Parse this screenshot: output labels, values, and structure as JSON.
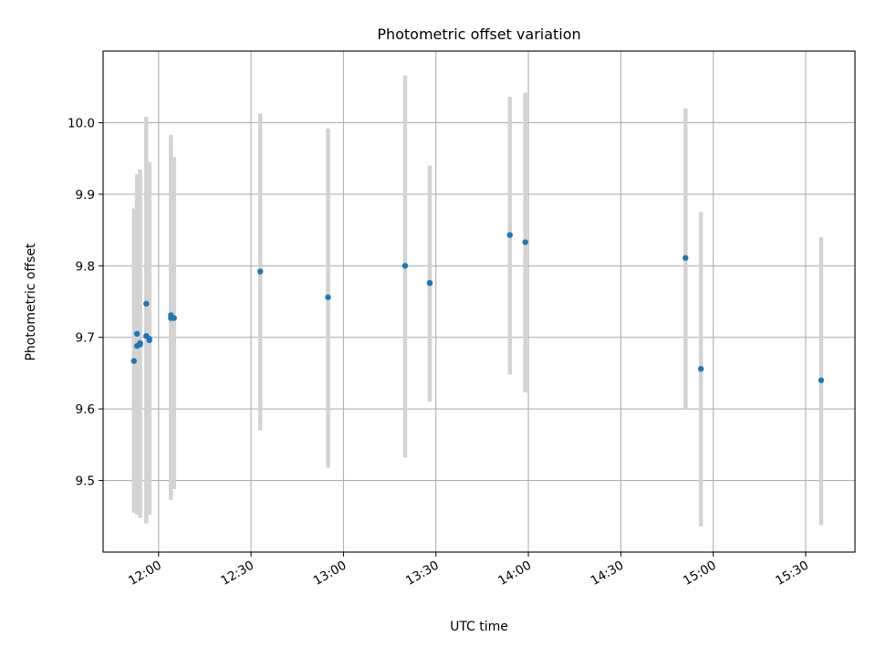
{
  "chart_data": {
    "type": "scatter",
    "title": "Photometric offset variation",
    "xlabel": "UTC time",
    "ylabel": "Photometric offset",
    "x_is_time": true,
    "xlim": [
      "11:42",
      "15:46"
    ],
    "ylim": [
      9.4,
      10.1
    ],
    "x_ticks": [
      "12:00",
      "12:30",
      "13:00",
      "13:30",
      "14:00",
      "14:30",
      "15:00",
      "15:30"
    ],
    "y_ticks": [
      9.5,
      9.6,
      9.7,
      9.8,
      9.9,
      10.0
    ],
    "y_tick_labels": [
      "9.5",
      "9.6",
      "9.7",
      "9.8",
      "9.9",
      "10.0"
    ],
    "grid": true,
    "colors": {
      "point": "#1f77b4",
      "error_bar": "#d3d3d3",
      "grid": "#b0b0b0"
    },
    "points": [
      {
        "time": "11:52",
        "y": 9.667,
        "err_low": 9.455,
        "err_high": 9.88
      },
      {
        "time": "11:53",
        "y": 9.688,
        "err_low": 9.452,
        "err_high": 9.928
      },
      {
        "time": "11:53",
        "y": 9.705,
        "err_low": 9.46,
        "err_high": 9.905
      },
      {
        "time": "11:54",
        "y": 9.692,
        "err_low": 9.448,
        "err_high": 9.935
      },
      {
        "time": "11:54",
        "y": 9.69,
        "err_low": 9.455,
        "err_high": 9.93
      },
      {
        "time": "11:56",
        "y": 9.747,
        "err_low": 9.44,
        "err_high": 10.008
      },
      {
        "time": "11:56",
        "y": 9.702,
        "err_low": 9.445,
        "err_high": 9.96
      },
      {
        "time": "11:57",
        "y": 9.696,
        "err_low": 9.452,
        "err_high": 9.94
      },
      {
        "time": "11:57",
        "y": 9.698,
        "err_low": 9.455,
        "err_high": 9.945
      },
      {
        "time": "12:04",
        "y": 9.731,
        "err_low": 9.473,
        "err_high": 9.983
      },
      {
        "time": "12:04",
        "y": 9.727,
        "err_low": 9.48,
        "err_high": 9.975
      },
      {
        "time": "12:05",
        "y": 9.727,
        "err_low": 9.488,
        "err_high": 9.952
      },
      {
        "time": "12:33",
        "y": 9.792,
        "err_low": 9.57,
        "err_high": 10.013
      },
      {
        "time": "12:55",
        "y": 9.756,
        "err_low": 9.518,
        "err_high": 9.992
      },
      {
        "time": "13:20",
        "y": 9.8,
        "err_low": 9.532,
        "err_high": 10.066
      },
      {
        "time": "13:28",
        "y": 9.776,
        "err_low": 9.61,
        "err_high": 9.94
      },
      {
        "time": "13:28",
        "y": 9.776,
        "err_low": 9.612,
        "err_high": 9.938
      },
      {
        "time": "13:54",
        "y": 9.843,
        "err_low": 9.648,
        "err_high": 10.036
      },
      {
        "time": "13:59",
        "y": 9.833,
        "err_low": 9.623,
        "err_high": 10.042
      },
      {
        "time": "14:51",
        "y": 9.811,
        "err_low": 9.6,
        "err_high": 10.02
      },
      {
        "time": "14:56",
        "y": 9.656,
        "err_low": 9.436,
        "err_high": 9.875
      },
      {
        "time": "15:35",
        "y": 9.64,
        "err_low": 9.438,
        "err_high": 9.84
      }
    ]
  }
}
